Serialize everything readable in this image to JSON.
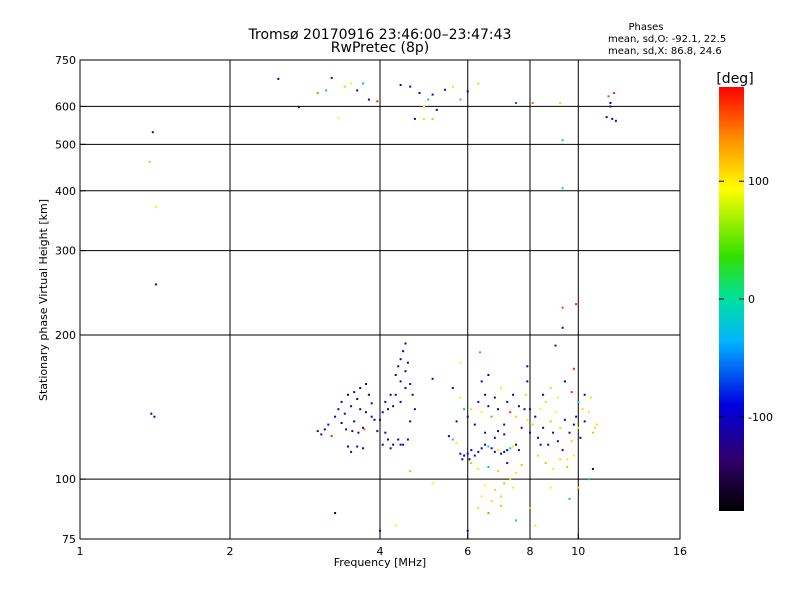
{
  "chart_data": {
    "type": "scatter",
    "title": "Tromsø 20170916 23:46:00–23:47:43",
    "subtitle": "RwPretec (8p)",
    "stats": {
      "heading": "Phases",
      "o_line": "mean, sd,O: -92.1, 22.5",
      "x_line": "mean, sd,X: 86.8, 24.6"
    },
    "xlabel": "Frequency [MHz]",
    "ylabel": "Stationary phase Virtual Height [km]",
    "x_scale": "log",
    "y_scale": "log",
    "xlim": [
      1,
      16
    ],
    "ylim": [
      75,
      750
    ],
    "x_ticks": [
      1,
      2,
      4,
      6,
      8,
      10,
      16
    ],
    "y_ticks": [
      75,
      100,
      200,
      300,
      400,
      500,
      600,
      750
    ],
    "grid_x": [
      2,
      4,
      6,
      8,
      10
    ],
    "grid_y": [
      100,
      200,
      300,
      400,
      500,
      600
    ],
    "colorbar": {
      "label": "[deg]",
      "range": [
        -180,
        180
      ],
      "ticks": [
        100,
        0,
        -100
      ],
      "tick_labels": [
        "100",
        "0",
        "-100"
      ]
    },
    "points": [
      {
        "x": 1.4,
        "y": 530,
        "c": -115
      },
      {
        "x": 1.38,
        "y": 460,
        "c": 120
      },
      {
        "x": 1.42,
        "y": 370,
        "c": 100
      },
      {
        "x": 1.42,
        "y": 255,
        "c": -140
      },
      {
        "x": 1.39,
        "y": 137,
        "c": -120
      },
      {
        "x": 1.41,
        "y": 135,
        "c": -100
      },
      {
        "x": 2.5,
        "y": 685,
        "c": -110
      },
      {
        "x": 2.75,
        "y": 598,
        "c": -140
      },
      {
        "x": 3.0,
        "y": 640,
        "c": 40
      },
      {
        "x": 3.12,
        "y": 648,
        "c": -15
      },
      {
        "x": 3.2,
        "y": 688,
        "c": -120
      },
      {
        "x": 3.3,
        "y": 568,
        "c": 90
      },
      {
        "x": 3.4,
        "y": 660,
        "c": 70
      },
      {
        "x": 3.5,
        "y": 670,
        "c": 100
      },
      {
        "x": 3.6,
        "y": 648,
        "c": -100
      },
      {
        "x": 3.7,
        "y": 670,
        "c": -30
      },
      {
        "x": 3.8,
        "y": 620,
        "c": -110
      },
      {
        "x": 3.95,
        "y": 615,
        "c": 170
      },
      {
        "x": 4.4,
        "y": 665,
        "c": -100
      },
      {
        "x": 4.6,
        "y": 660,
        "c": -90
      },
      {
        "x": 4.8,
        "y": 640,
        "c": -110
      },
      {
        "x": 4.9,
        "y": 600,
        "c": 100
      },
      {
        "x": 5.0,
        "y": 620,
        "c": -20
      },
      {
        "x": 5.1,
        "y": 635,
        "c": -110
      },
      {
        "x": 5.2,
        "y": 590,
        "c": -100
      },
      {
        "x": 5.4,
        "y": 650,
        "c": -100
      },
      {
        "x": 4.7,
        "y": 565,
        "c": -110
      },
      {
        "x": 4.9,
        "y": 565,
        "c": 110
      },
      {
        "x": 5.1,
        "y": 565,
        "c": 120
      },
      {
        "x": 5.6,
        "y": 660,
        "c": 80
      },
      {
        "x": 5.8,
        "y": 620,
        "c": 30
      },
      {
        "x": 6.3,
        "y": 670,
        "c": 70
      },
      {
        "x": 6.0,
        "y": 645,
        "c": -100
      },
      {
        "x": 7.5,
        "y": 610,
        "c": -60
      },
      {
        "x": 8.1,
        "y": 610,
        "c": 150
      },
      {
        "x": 9.2,
        "y": 610,
        "c": 110
      },
      {
        "x": 9.3,
        "y": 510,
        "c": -10
      },
      {
        "x": 9.3,
        "y": 405,
        "c": -20
      },
      {
        "x": 11.5,
        "y": 630,
        "c": 160
      },
      {
        "x": 11.6,
        "y": 610,
        "c": -120
      },
      {
        "x": 11.8,
        "y": 640,
        "c": 170
      },
      {
        "x": 11.4,
        "y": 570,
        "c": -110
      },
      {
        "x": 11.7,
        "y": 565,
        "c": -100
      },
      {
        "x": 11.9,
        "y": 560,
        "c": -120
      },
      {
        "x": 11.6,
        "y": 600,
        "c": -110
      },
      {
        "x": 3.25,
        "y": 85,
        "c": -150
      },
      {
        "x": 4.0,
        "y": 78,
        "c": -100
      },
      {
        "x": 4.3,
        "y": 80,
        "c": 100
      },
      {
        "x": 4.6,
        "y": 104,
        "c": 120
      },
      {
        "x": 5.1,
        "y": 98,
        "c": 90
      },
      {
        "x": 6.0,
        "y": 78,
        "c": -100
      },
      {
        "x": 6.3,
        "y": 87,
        "c": 80
      },
      {
        "x": 6.6,
        "y": 85,
        "c": 40
      },
      {
        "x": 7.0,
        "y": 92,
        "c": 110
      },
      {
        "x": 7.5,
        "y": 82,
        "c": -20
      },
      {
        "x": 8.0,
        "y": 87,
        "c": 120
      },
      {
        "x": 8.2,
        "y": 80,
        "c": 100
      },
      {
        "x": 9.3,
        "y": 228,
        "c": 160
      },
      {
        "x": 9.9,
        "y": 232,
        "c": 170
      },
      {
        "x": 9.3,
        "y": 207,
        "c": -110
      },
      {
        "x": 9.0,
        "y": 190,
        "c": -120
      },
      {
        "x": 6.35,
        "y": 184,
        "c": 150
      },
      {
        "x": 5.1,
        "y": 162,
        "c": -100
      },
      {
        "x": 5.8,
        "y": 175,
        "c": 100
      },
      {
        "x": 7.9,
        "y": 172,
        "c": -110
      },
      {
        "x": 9.8,
        "y": 170,
        "c": 170
      },
      {
        "x": 10.7,
        "y": 105,
        "c": -150
      },
      {
        "x": 10.5,
        "y": 100,
        "c": -20
      },
      {
        "x": 9.6,
        "y": 91,
        "c": -30
      },
      {
        "x": 8.8,
        "y": 96,
        "c": 100
      },
      {
        "x": 10.0,
        "y": 96,
        "c": 110
      },
      {
        "x": 10.9,
        "y": 130,
        "c": 80
      },
      {
        "x": 3.0,
        "y": 126,
        "c": -120
      },
      {
        "x": 3.05,
        "y": 124,
        "c": -140
      },
      {
        "x": 3.1,
        "y": 127,
        "c": -100
      },
      {
        "x": 3.15,
        "y": 130,
        "c": -110
      },
      {
        "x": 3.2,
        "y": 123,
        "c": 170
      },
      {
        "x": 3.25,
        "y": 135,
        "c": -120
      },
      {
        "x": 3.3,
        "y": 140,
        "c": -110
      },
      {
        "x": 3.35,
        "y": 145,
        "c": -100
      },
      {
        "x": 3.4,
        "y": 137,
        "c": -130
      },
      {
        "x": 3.45,
        "y": 150,
        "c": -110
      },
      {
        "x": 3.5,
        "y": 142,
        "c": -120
      },
      {
        "x": 3.55,
        "y": 132,
        "c": -100
      },
      {
        "x": 3.6,
        "y": 147,
        "c": -110
      },
      {
        "x": 3.65,
        "y": 155,
        "c": -100
      },
      {
        "x": 3.7,
        "y": 128,
        "c": -140
      },
      {
        "x": 3.75,
        "y": 138,
        "c": -120
      },
      {
        "x": 3.8,
        "y": 150,
        "c": -110
      },
      {
        "x": 3.85,
        "y": 144,
        "c": -100
      },
      {
        "x": 3.9,
        "y": 133,
        "c": -120
      },
      {
        "x": 3.95,
        "y": 126,
        "c": -110
      },
      {
        "x": 3.42,
        "y": 127,
        "c": -130
      },
      {
        "x": 3.52,
        "y": 126,
        "c": -120
      },
      {
        "x": 3.62,
        "y": 125,
        "c": -110
      },
      {
        "x": 3.72,
        "y": 127,
        "c": 150
      },
      {
        "x": 3.45,
        "y": 117,
        "c": -110
      },
      {
        "x": 3.5,
        "y": 114,
        "c": -120
      },
      {
        "x": 3.6,
        "y": 117,
        "c": -100
      },
      {
        "x": 3.7,
        "y": 116,
        "c": -110
      },
      {
        "x": 3.35,
        "y": 131,
        "c": -100
      },
      {
        "x": 3.55,
        "y": 152,
        "c": -110
      },
      {
        "x": 3.75,
        "y": 158,
        "c": -120
      },
      {
        "x": 3.85,
        "y": 135,
        "c": -130
      },
      {
        "x": 3.65,
        "y": 140,
        "c": -110
      },
      {
        "x": 4.0,
        "y": 133,
        "c": -110
      },
      {
        "x": 4.05,
        "y": 138,
        "c": -100
      },
      {
        "x": 4.1,
        "y": 145,
        "c": -120
      },
      {
        "x": 4.15,
        "y": 140,
        "c": -110
      },
      {
        "x": 4.2,
        "y": 150,
        "c": -100
      },
      {
        "x": 4.25,
        "y": 142,
        "c": -130
      },
      {
        "x": 4.1,
        "y": 125,
        "c": -110
      },
      {
        "x": 4.05,
        "y": 118,
        "c": -120
      },
      {
        "x": 4.15,
        "y": 121,
        "c": -100
      },
      {
        "x": 4.25,
        "y": 118,
        "c": -110
      },
      {
        "x": 4.35,
        "y": 121,
        "c": -120
      },
      {
        "x": 4.45,
        "y": 118,
        "c": -100
      },
      {
        "x": 4.55,
        "y": 121,
        "c": -110
      },
      {
        "x": 4.2,
        "y": 116,
        "c": -130
      },
      {
        "x": 4.4,
        "y": 118,
        "c": -100
      },
      {
        "x": 4.3,
        "y": 165,
        "c": -110
      },
      {
        "x": 4.35,
        "y": 172,
        "c": -120
      },
      {
        "x": 4.4,
        "y": 178,
        "c": -110
      },
      {
        "x": 4.45,
        "y": 185,
        "c": -100
      },
      {
        "x": 4.5,
        "y": 192,
        "c": -120
      },
      {
        "x": 4.4,
        "y": 160,
        "c": -130
      },
      {
        "x": 4.5,
        "y": 168,
        "c": -110
      },
      {
        "x": 4.55,
        "y": 175,
        "c": -100
      },
      {
        "x": 4.6,
        "y": 158,
        "c": -110
      },
      {
        "x": 4.3,
        "y": 150,
        "c": -120
      },
      {
        "x": 4.4,
        "y": 145,
        "c": -110
      },
      {
        "x": 4.5,
        "y": 155,
        "c": -100
      },
      {
        "x": 4.65,
        "y": 150,
        "c": -120
      },
      {
        "x": 4.7,
        "y": 140,
        "c": -110
      },
      {
        "x": 4.6,
        "y": 132,
        "c": -100
      },
      {
        "x": 5.5,
        "y": 123,
        "c": -100
      },
      {
        "x": 5.6,
        "y": 121,
        "c": -20
      },
      {
        "x": 5.7,
        "y": 119,
        "c": 100
      },
      {
        "x": 5.8,
        "y": 113,
        "c": -110
      },
      {
        "x": 5.85,
        "y": 110,
        "c": -120
      },
      {
        "x": 5.9,
        "y": 112,
        "c": -100
      },
      {
        "x": 6.0,
        "y": 113,
        "c": -110
      },
      {
        "x": 6.05,
        "y": 110,
        "c": -130
      },
      {
        "x": 6.1,
        "y": 115,
        "c": -100
      },
      {
        "x": 6.2,
        "y": 112,
        "c": -110
      },
      {
        "x": 6.3,
        "y": 114,
        "c": -120
      },
      {
        "x": 6.4,
        "y": 116,
        "c": -100
      },
      {
        "x": 6.5,
        "y": 118,
        "c": -110
      },
      {
        "x": 6.6,
        "y": 117,
        "c": -20
      },
      {
        "x": 6.7,
        "y": 116,
        "c": -110
      },
      {
        "x": 6.8,
        "y": 114,
        "c": -120
      },
      {
        "x": 6.9,
        "y": 115,
        "c": 100
      },
      {
        "x": 7.0,
        "y": 113,
        "c": -100
      },
      {
        "x": 7.1,
        "y": 114,
        "c": -110
      },
      {
        "x": 7.2,
        "y": 115,
        "c": -120
      },
      {
        "x": 7.3,
        "y": 116,
        "c": -20
      },
      {
        "x": 7.4,
        "y": 117,
        "c": 100
      },
      {
        "x": 7.5,
        "y": 118,
        "c": -110
      },
      {
        "x": 7.6,
        "y": 115,
        "c": -100
      },
      {
        "x": 6.0,
        "y": 135,
        "c": -110
      },
      {
        "x": 6.1,
        "y": 140,
        "c": 110
      },
      {
        "x": 6.2,
        "y": 130,
        "c": -110
      },
      {
        "x": 6.3,
        "y": 145,
        "c": -120
      },
      {
        "x": 6.4,
        "y": 138,
        "c": 100
      },
      {
        "x": 6.5,
        "y": 150,
        "c": -100
      },
      {
        "x": 6.6,
        "y": 142,
        "c": -110
      },
      {
        "x": 6.7,
        "y": 135,
        "c": 40
      },
      {
        "x": 6.8,
        "y": 148,
        "c": -110
      },
      {
        "x": 6.9,
        "y": 140,
        "c": -120
      },
      {
        "x": 7.0,
        "y": 155,
        "c": 100
      },
      {
        "x": 7.1,
        "y": 130,
        "c": -110
      },
      {
        "x": 7.2,
        "y": 145,
        "c": -100
      },
      {
        "x": 7.3,
        "y": 138,
        "c": 170
      },
      {
        "x": 7.4,
        "y": 150,
        "c": -110
      },
      {
        "x": 7.5,
        "y": 135,
        "c": 110
      },
      {
        "x": 7.6,
        "y": 142,
        "c": -110
      },
      {
        "x": 7.7,
        "y": 128,
        "c": -120
      },
      {
        "x": 7.8,
        "y": 140,
        "c": -100
      },
      {
        "x": 7.9,
        "y": 133,
        "c": 100
      },
      {
        "x": 5.6,
        "y": 155,
        "c": -100
      },
      {
        "x": 5.8,
        "y": 148,
        "c": 100
      },
      {
        "x": 5.9,
        "y": 140,
        "c": -20
      },
      {
        "x": 5.7,
        "y": 132,
        "c": -110
      },
      {
        "x": 6.4,
        "y": 160,
        "c": -100
      },
      {
        "x": 6.6,
        "y": 165,
        "c": -110
      },
      {
        "x": 6.5,
        "y": 125,
        "c": -120
      },
      {
        "x": 6.8,
        "y": 122,
        "c": -110
      },
      {
        "x": 7.1,
        "y": 124,
        "c": -100
      },
      {
        "x": 6.9,
        "y": 126,
        "c": -120
      },
      {
        "x": 6.1,
        "y": 108,
        "c": 120
      },
      {
        "x": 6.3,
        "y": 105,
        "c": 100
      },
      {
        "x": 6.6,
        "y": 106,
        "c": -20
      },
      {
        "x": 6.9,
        "y": 104,
        "c": 110
      },
      {
        "x": 7.2,
        "y": 108,
        "c": -110
      },
      {
        "x": 7.5,
        "y": 103,
        "c": 100
      },
      {
        "x": 7.7,
        "y": 107,
        "c": 120
      },
      {
        "x": 7.3,
        "y": 100,
        "c": 110
      },
      {
        "x": 6.5,
        "y": 97,
        "c": 100
      },
      {
        "x": 6.8,
        "y": 95,
        "c": 110
      },
      {
        "x": 7.1,
        "y": 98,
        "c": 120
      },
      {
        "x": 7.4,
        "y": 96,
        "c": 100
      },
      {
        "x": 6.7,
        "y": 90,
        "c": 110
      },
      {
        "x": 7.0,
        "y": 88,
        "c": 120
      },
      {
        "x": 6.4,
        "y": 92,
        "c": 100
      },
      {
        "x": 8.0,
        "y": 125,
        "c": -110
      },
      {
        "x": 8.1,
        "y": 130,
        "c": 110
      },
      {
        "x": 8.2,
        "y": 135,
        "c": -110
      },
      {
        "x": 8.3,
        "y": 122,
        "c": -120
      },
      {
        "x": 8.4,
        "y": 140,
        "c": 100
      },
      {
        "x": 8.5,
        "y": 128,
        "c": -100
      },
      {
        "x": 8.6,
        "y": 145,
        "c": 110
      },
      {
        "x": 8.7,
        "y": 118,
        "c": -110
      },
      {
        "x": 8.8,
        "y": 132,
        "c": 120
      },
      {
        "x": 8.9,
        "y": 125,
        "c": -110
      },
      {
        "x": 9.0,
        "y": 138,
        "c": 100
      },
      {
        "x": 9.1,
        "y": 120,
        "c": -120
      },
      {
        "x": 9.2,
        "y": 128,
        "c": 110
      },
      {
        "x": 9.3,
        "y": 115,
        "c": -110
      },
      {
        "x": 9.4,
        "y": 133,
        "c": -100
      },
      {
        "x": 9.5,
        "y": 110,
        "c": 100
      },
      {
        "x": 9.6,
        "y": 125,
        "c": -110
      },
      {
        "x": 9.7,
        "y": 120,
        "c": 110
      },
      {
        "x": 9.8,
        "y": 130,
        "c": -110
      },
      {
        "x": 9.9,
        "y": 135,
        "c": -120
      },
      {
        "x": 10.0,
        "y": 128,
        "c": 100
      },
      {
        "x": 10.1,
        "y": 122,
        "c": -110
      },
      {
        "x": 10.2,
        "y": 140,
        "c": 110
      },
      {
        "x": 10.3,
        "y": 132,
        "c": -110
      },
      {
        "x": 10.5,
        "y": 138,
        "c": 100
      },
      {
        "x": 10.7,
        "y": 125,
        "c": 120
      },
      {
        "x": 10.8,
        "y": 128,
        "c": 110
      },
      {
        "x": 8.5,
        "y": 150,
        "c": -110
      },
      {
        "x": 8.8,
        "y": 155,
        "c": 110
      },
      {
        "x": 9.1,
        "y": 148,
        "c": 100
      },
      {
        "x": 9.4,
        "y": 160,
        "c": -110
      },
      {
        "x": 9.7,
        "y": 152,
        "c": 170
      },
      {
        "x": 10.0,
        "y": 145,
        "c": -20
      },
      {
        "x": 10.3,
        "y": 150,
        "c": -110
      },
      {
        "x": 10.6,
        "y": 148,
        "c": 110
      },
      {
        "x": 8.3,
        "y": 112,
        "c": 110
      },
      {
        "x": 8.6,
        "y": 108,
        "c": 120
      },
      {
        "x": 8.9,
        "y": 105,
        "c": 100
      },
      {
        "x": 9.2,
        "y": 110,
        "c": 110
      },
      {
        "x": 9.5,
        "y": 106,
        "c": 120
      },
      {
        "x": 9.8,
        "y": 112,
        "c": 100
      },
      {
        "x": 8.4,
        "y": 118,
        "c": -110
      },
      {
        "x": 8.0,
        "y": 140,
        "c": -100
      },
      {
        "x": 7.85,
        "y": 150,
        "c": 110
      },
      {
        "x": 7.9,
        "y": 160,
        "c": -110
      }
    ]
  }
}
